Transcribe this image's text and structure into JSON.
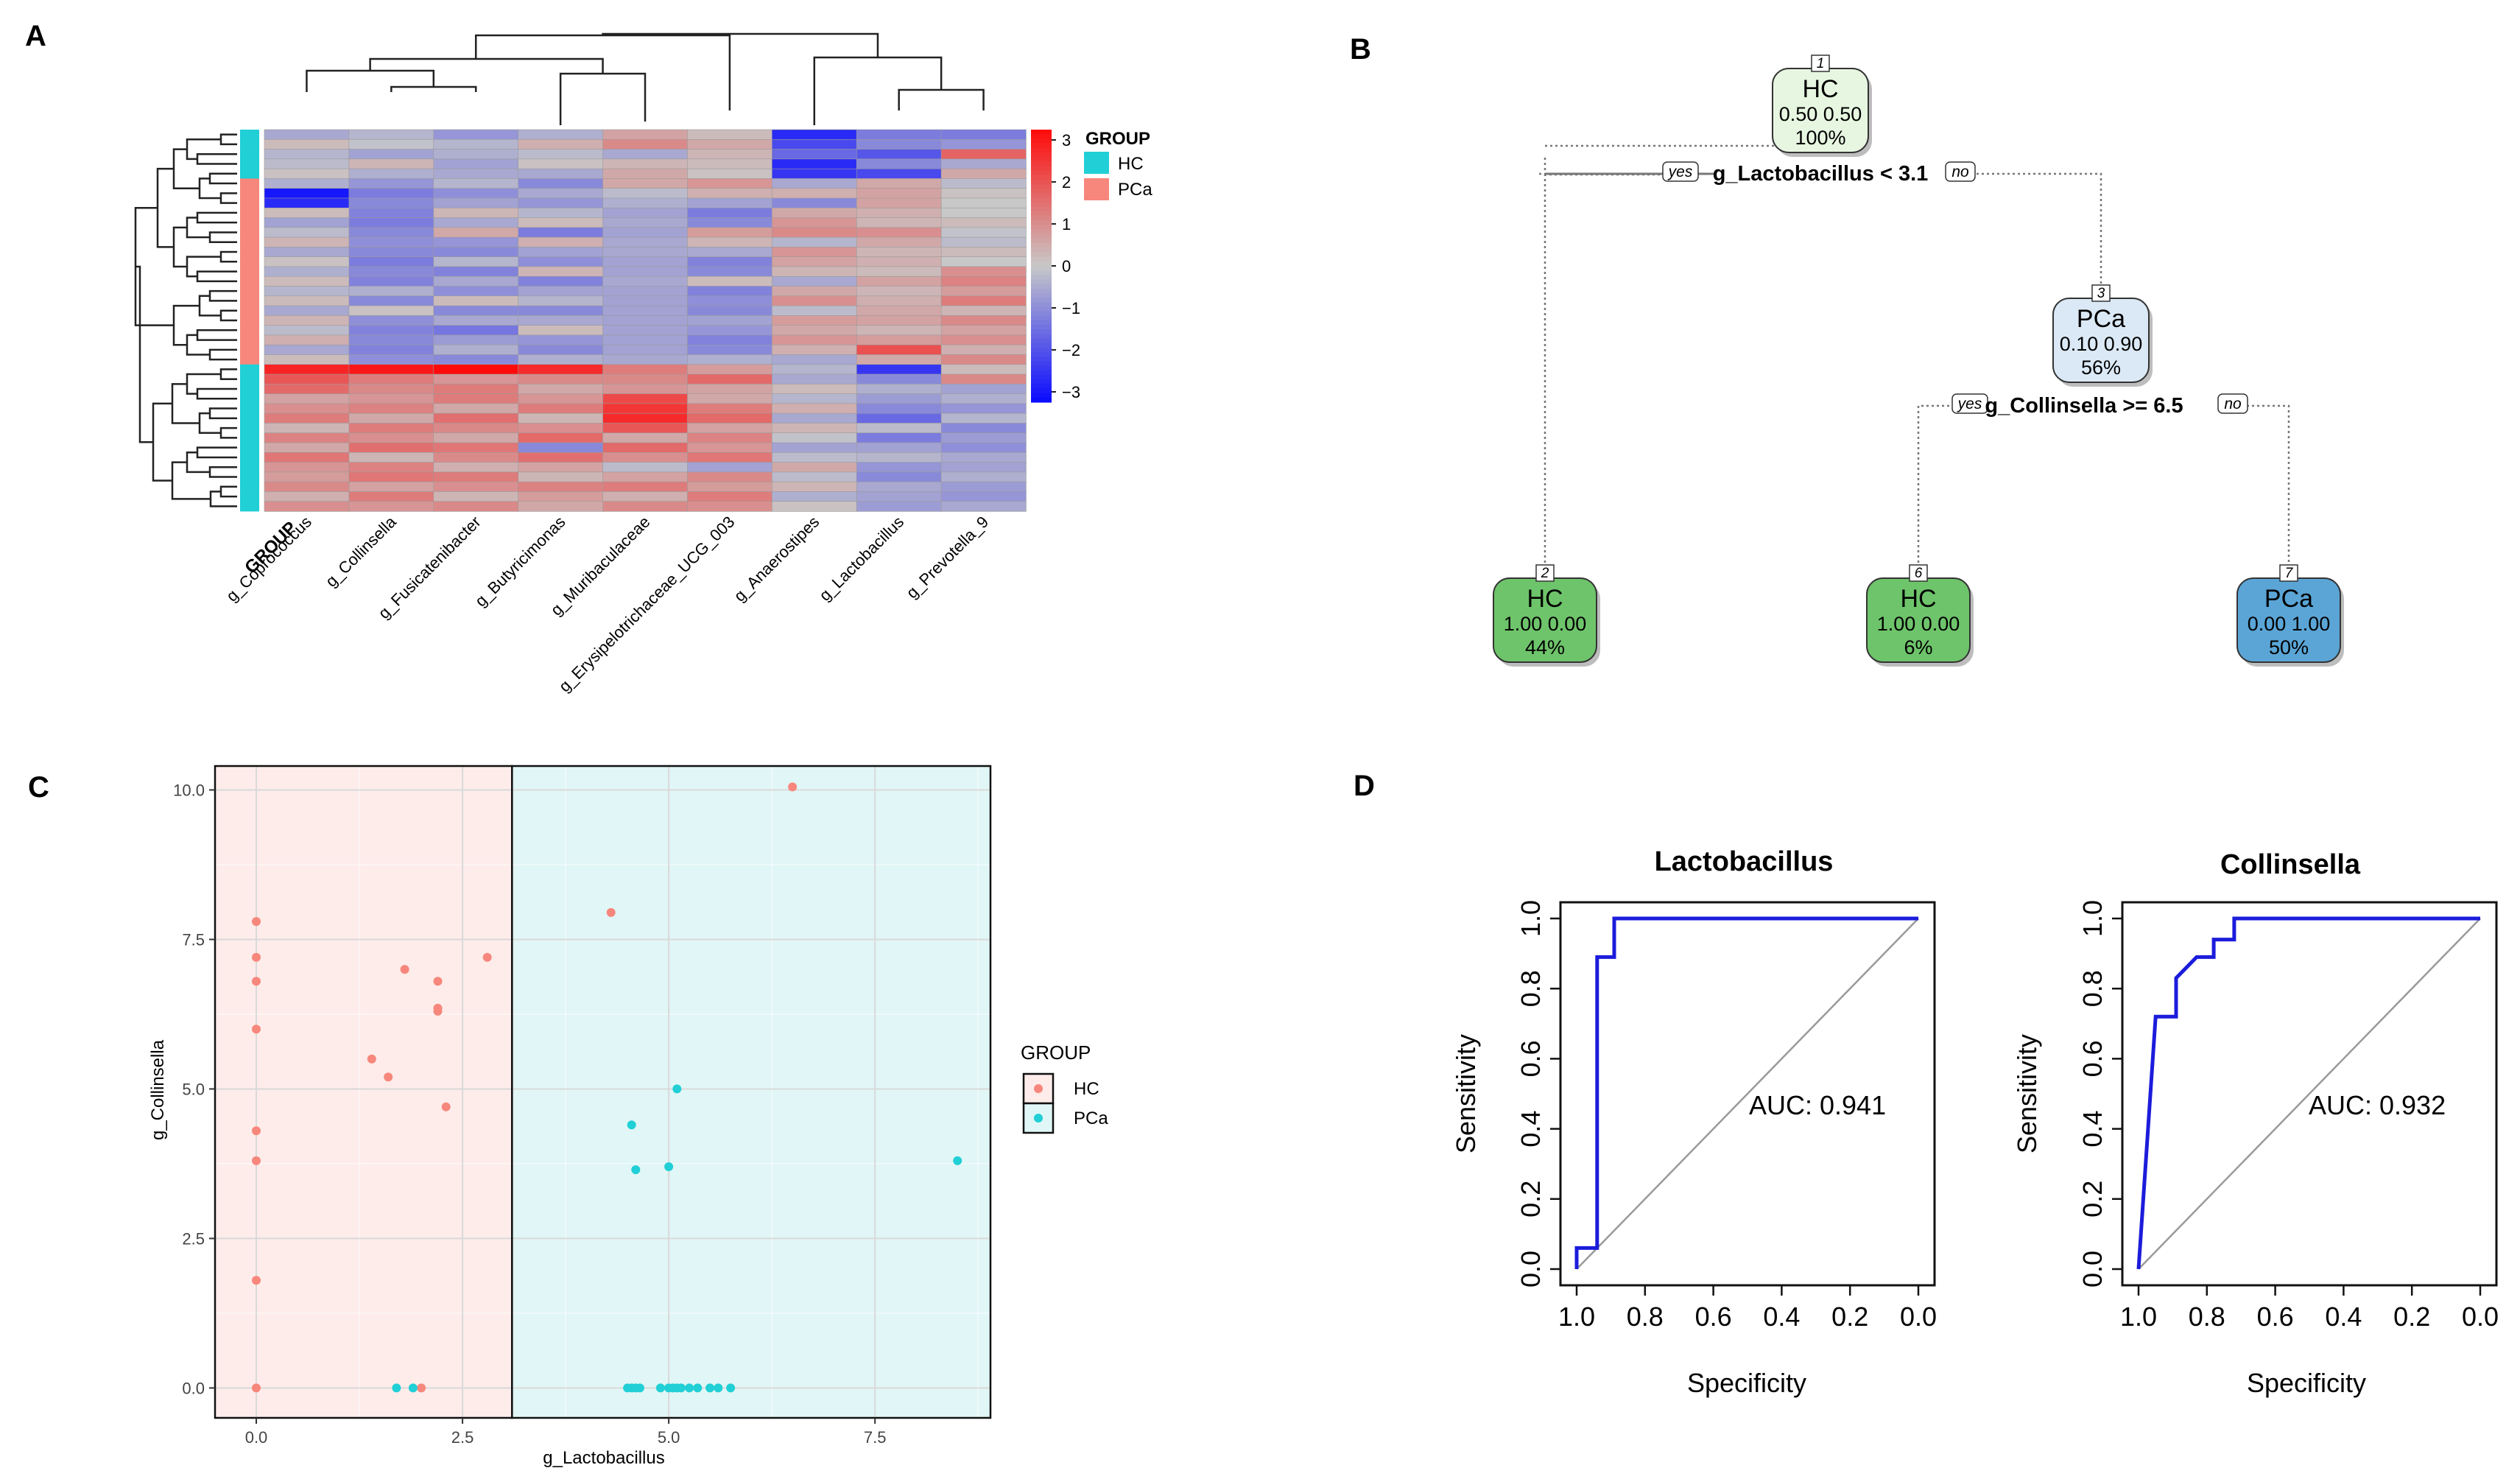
{
  "panel_labels": {
    "a": "A",
    "b": "B",
    "c": "C",
    "d": "D"
  },
  "colors": {
    "hc": "#21cfd6",
    "pca": "#f7877c",
    "heat_low": "#0a0aff",
    "heat_mid": "#c8c8c8",
    "heat_high": "#ff0a0a",
    "tree_hc_root": "#e7f6e1",
    "tree_hc_leaf": "#6ec46a",
    "tree_pca_mid": "#dbe9f6",
    "tree_pca_leaf": "#5aa5d6",
    "roc": "#1c1cdc",
    "c_bg_hc": "#fdecea",
    "c_bg_pca": "#e1f6f6"
  },
  "chart_data": [
    {
      "type": "heatmap",
      "panel": "A",
      "columns": [
        "g_Coprococcus",
        "g_Collinsella",
        "g_Fusicatenibacter",
        "g_Butyricimonas",
        "g_Muribaculaceae",
        "g_Erysipelotrichaceae_UCG_003",
        "g_Anaerostipes",
        "g_Lactobacillus",
        "g_Prevotella_9"
      ],
      "row_group_label": "GROUP",
      "row_groups": [
        "HC",
        "HC",
        "HC",
        "HC",
        "HC",
        "PCa",
        "PCa",
        "PCa",
        "PCa",
        "PCa",
        "PCa",
        "PCa",
        "PCa",
        "PCa",
        "PCa",
        "PCa",
        "PCa",
        "PCa",
        "PCa",
        "PCa",
        "PCa",
        "PCa",
        "PCa",
        "PCa",
        "HC",
        "HC",
        "HC",
        "HC",
        "HC",
        "HC",
        "HC",
        "HC",
        "HC",
        "HC",
        "HC",
        "HC",
        "HC",
        "HC",
        "HC"
      ],
      "values": [
        [
          -0.5,
          -0.3,
          -0.8,
          -0.4,
          0.6,
          0.2,
          -2.5,
          -1.2,
          -1.2
        ],
        [
          0.2,
          -0.1,
          -0.3,
          0.4,
          1.0,
          0.5,
          -2.0,
          -1.0,
          -0.8
        ],
        [
          -0.3,
          -0.6,
          -0.4,
          -0.2,
          -0.5,
          0.3,
          -1.5,
          -1.8,
          1.6
        ],
        [
          -0.2,
          0.3,
          -0.6,
          0.1,
          0.3,
          0.2,
          -2.5,
          -1.0,
          -0.5
        ],
        [
          0.1,
          -0.4,
          -0.5,
          -0.5,
          0.5,
          0.1,
          -2.3,
          -2.0,
          0.5
        ],
        [
          -0.4,
          -0.8,
          -0.3,
          -1.0,
          0.5,
          0.8,
          -0.5,
          0.5,
          -0.2
        ],
        [
          -2.8,
          -1.2,
          -0.9,
          -0.5,
          -0.2,
          0.4,
          0.4,
          0.6,
          0.1
        ],
        [
          -2.5,
          -1.0,
          -0.6,
          -0.8,
          -0.4,
          -0.6,
          -1.0,
          0.6,
          0.0
        ],
        [
          0.2,
          -1.1,
          0.3,
          -0.3,
          -0.6,
          -1.2,
          0.5,
          0.4,
          0.0
        ],
        [
          -0.6,
          -1.2,
          -0.5,
          0.2,
          -0.5,
          -1.0,
          0.8,
          0.3,
          0.2
        ],
        [
          -0.2,
          -1.0,
          0.5,
          -1.2,
          -0.6,
          0.7,
          1.0,
          0.9,
          -0.1
        ],
        [
          0.3,
          -0.9,
          -0.8,
          0.4,
          -0.5,
          0.3,
          -0.3,
          0.5,
          -0.2
        ],
        [
          -0.5,
          -1.0,
          -1.0,
          -0.6,
          -0.5,
          -0.5,
          0.8,
          0.3,
          0.2
        ],
        [
          0.1,
          -1.2,
          -0.3,
          -0.9,
          -0.6,
          -1.1,
          0.6,
          0.4,
          0.0
        ],
        [
          -0.4,
          -1.0,
          -1.1,
          0.3,
          -0.6,
          -1.0,
          0.3,
          0.2,
          0.9
        ],
        [
          0.2,
          -1.1,
          -0.5,
          -1.1,
          -0.5,
          0.2,
          -0.5,
          0.6,
          1.1
        ],
        [
          -0.3,
          -0.4,
          -0.9,
          -0.6,
          -0.6,
          -1.1,
          0.5,
          0.3,
          0.7
        ],
        [
          0.2,
          -1.0,
          0.2,
          -0.3,
          -0.6,
          -0.9,
          0.9,
          0.4,
          1.2
        ],
        [
          -0.5,
          0.1,
          -1.0,
          -1.0,
          -0.6,
          -1.0,
          -0.2,
          0.5,
          0.3
        ],
        [
          0.3,
          -0.9,
          -0.5,
          -0.5,
          -0.6,
          -0.6,
          0.7,
          0.6,
          1.0
        ],
        [
          -0.2,
          -1.1,
          -1.3,
          0.2,
          -0.6,
          -0.8,
          0.5,
          0.3,
          0.6
        ],
        [
          0.4,
          -1.0,
          -0.7,
          -0.8,
          -0.6,
          -1.1,
          0.8,
          0.7,
          0.9
        ],
        [
          -0.5,
          -1.1,
          -0.4,
          -1.0,
          -0.6,
          -1.0,
          0.4,
          1.9,
          0.4
        ],
        [
          0.2,
          -0.9,
          -1.0,
          -0.4,
          -0.5,
          -0.4,
          -0.5,
          0.5,
          1.0
        ],
        [
          2.6,
          2.8,
          3.0,
          2.5,
          1.2,
          0.7,
          -0.3,
          -2.3,
          0.2
        ],
        [
          1.8,
          1.2,
          0.8,
          1.0,
          1.0,
          1.5,
          -0.5,
          -1.0,
          1.0
        ],
        [
          1.5,
          1.0,
          1.2,
          0.5,
          0.8,
          0.6,
          0.2,
          -0.4,
          -0.6
        ],
        [
          0.6,
          0.8,
          1.2,
          0.8,
          2.0,
          0.5,
          -0.3,
          -0.7,
          -0.4
        ],
        [
          0.9,
          1.1,
          0.5,
          1.2,
          2.3,
          1.2,
          0.4,
          -1.0,
          -0.8
        ],
        [
          1.2,
          0.5,
          1.4,
          0.3,
          2.5,
          1.5,
          -0.5,
          -1.5,
          -0.3
        ],
        [
          0.3,
          1.2,
          1.0,
          0.9,
          1.8,
          0.6,
          0.3,
          -0.2,
          -1.0
        ],
        [
          1.1,
          0.9,
          0.5,
          1.5,
          0.5,
          1.1,
          -0.1,
          -1.2,
          -0.7
        ],
        [
          0.5,
          1.4,
          1.3,
          -1.0,
          1.5,
          0.8,
          -0.6,
          -0.6,
          -0.9
        ],
        [
          1.3,
          0.3,
          1.0,
          1.4,
          0.9,
          1.3,
          -0.2,
          -0.3,
          -0.5
        ],
        [
          0.8,
          1.1,
          0.4,
          0.6,
          -0.2,
          -0.6,
          0.5,
          -0.8,
          -0.6
        ],
        [
          0.7,
          1.3,
          1.2,
          0.3,
          0.6,
          1.0,
          -0.2,
          -1.0,
          -0.4
        ],
        [
          1.0,
          0.6,
          0.9,
          1.1,
          1.2,
          0.7,
          0.3,
          -0.5,
          -0.7
        ],
        [
          0.4,
          1.2,
          0.3,
          0.7,
          0.4,
          1.2,
          -0.4,
          -0.6,
          -0.8
        ],
        [
          0.9,
          0.8,
          1.0,
          0.5,
          1.0,
          0.9,
          0.1,
          -0.7,
          -0.5
        ]
      ],
      "colorbar": {
        "min": -3,
        "max": 3,
        "ticks": [
          "3",
          "2",
          "1",
          "0",
          "−1",
          "−2",
          "−3"
        ]
      },
      "legend": {
        "title": "GROUP",
        "entries": [
          "HC",
          "PCa"
        ]
      }
    },
    {
      "type": "decision-tree",
      "panel": "B",
      "nodes": [
        {
          "id": "1",
          "class": "HC",
          "probs": "0.50 0.50",
          "pct": "100%"
        },
        {
          "id": "3",
          "class": "PCa",
          "probs": "0.10 0.90",
          "pct": "56%"
        },
        {
          "id": "2",
          "class": "HC",
          "probs": "1.00 0.00",
          "pct": "44%"
        },
        {
          "id": "6",
          "class": "HC",
          "probs": "1.00 0.00",
          "pct": "6%"
        },
        {
          "id": "7",
          "class": "PCa",
          "probs": "0.00 1.00",
          "pct": "50%"
        }
      ],
      "splits": [
        {
          "label": "g_Lactobacillus < 3.1",
          "yes": "yes",
          "no": "no"
        },
        {
          "label": "g_Collinsella >= 6.5",
          "yes": "yes",
          "no": "no"
        }
      ]
    },
    {
      "type": "scatter",
      "panel": "C",
      "xlabel": "g_Lactobacillus",
      "ylabel": "g_Collinsella",
      "xlim": [
        -0.5,
        8.9
      ],
      "ylim": [
        -0.5,
        10.4
      ],
      "xticks": [
        0,
        2.5,
        5,
        7.5
      ],
      "xtick_labels": [
        "0.0",
        "2.5",
        "5.0",
        "7.5"
      ],
      "yticks": [
        0,
        2.5,
        5,
        7.5,
        10
      ],
      "ytick_labels": [
        "0.0",
        "2.5",
        "5.0",
        "7.5",
        "10.0"
      ],
      "threshold_x": 3.1,
      "legend": {
        "title": "GROUP",
        "entries": [
          "HC",
          "PCa"
        ]
      },
      "series": [
        {
          "name": "HC",
          "x": [
            0,
            0,
            0,
            0,
            0,
            0,
            0,
            0,
            1.4,
            1.6,
            1.8,
            2.2,
            2.2,
            2.2,
            2.3,
            2.8,
            4.3,
            6.5,
            2.0
          ],
          "y": [
            7.8,
            7.2,
            6.8,
            6.0,
            4.3,
            3.8,
            1.8,
            0,
            5.5,
            5.2,
            7.0,
            6.8,
            6.35,
            6.3,
            4.7,
            7.2,
            7.95,
            10.05,
            0
          ]
        },
        {
          "name": "PCa",
          "x": [
            1.7,
            1.9,
            4.5,
            4.55,
            4.6,
            4.65,
            4.9,
            5.0,
            5.05,
            5.1,
            5.15,
            5.25,
            5.35,
            5.5,
            5.6,
            5.75,
            5.0,
            5.1,
            8.5,
            4.55,
            4.6
          ],
          "y": [
            0,
            0,
            0,
            0,
            0,
            0,
            0,
            0,
            0,
            0,
            0,
            0,
            0,
            0,
            0,
            0,
            3.7,
            5.0,
            3.8,
            4.4,
            3.65
          ]
        }
      ]
    },
    {
      "type": "line",
      "panel": "D1",
      "title": "Lactobacillus",
      "xlabel": "Specificity",
      "ylabel": "Sensitivity",
      "xlim": [
        1.0,
        0.0
      ],
      "ylim": [
        0.0,
        1.0
      ],
      "ticks": [
        "0.0",
        "0.2",
        "0.4",
        "0.6",
        "0.8",
        "1.0"
      ],
      "auc_label": "AUC: 0.941",
      "x": [
        1.0,
        1.0,
        0.94,
        0.94,
        0.89,
        0.89,
        0.0
      ],
      "y": [
        0.0,
        0.06,
        0.06,
        0.89,
        0.89,
        1.0,
        1.0
      ]
    },
    {
      "type": "line",
      "panel": "D2",
      "title": "Collinsella",
      "xlabel": "Specificity",
      "ylabel": "Sensitivity",
      "xlim": [
        1.0,
        0.0
      ],
      "ylim": [
        0.0,
        1.0
      ],
      "ticks": [
        "0.0",
        "0.2",
        "0.4",
        "0.6",
        "0.8",
        "1.0"
      ],
      "auc_label": "AUC: 0.932",
      "x": [
        1.0,
        0.95,
        0.95,
        0.89,
        0.89,
        0.86,
        0.83,
        0.78,
        0.78,
        0.72,
        0.72,
        0.0
      ],
      "y": [
        0.0,
        0.72,
        0.72,
        0.72,
        0.83,
        0.86,
        0.89,
        0.89,
        0.94,
        0.94,
        1.0,
        1.0
      ]
    }
  ]
}
